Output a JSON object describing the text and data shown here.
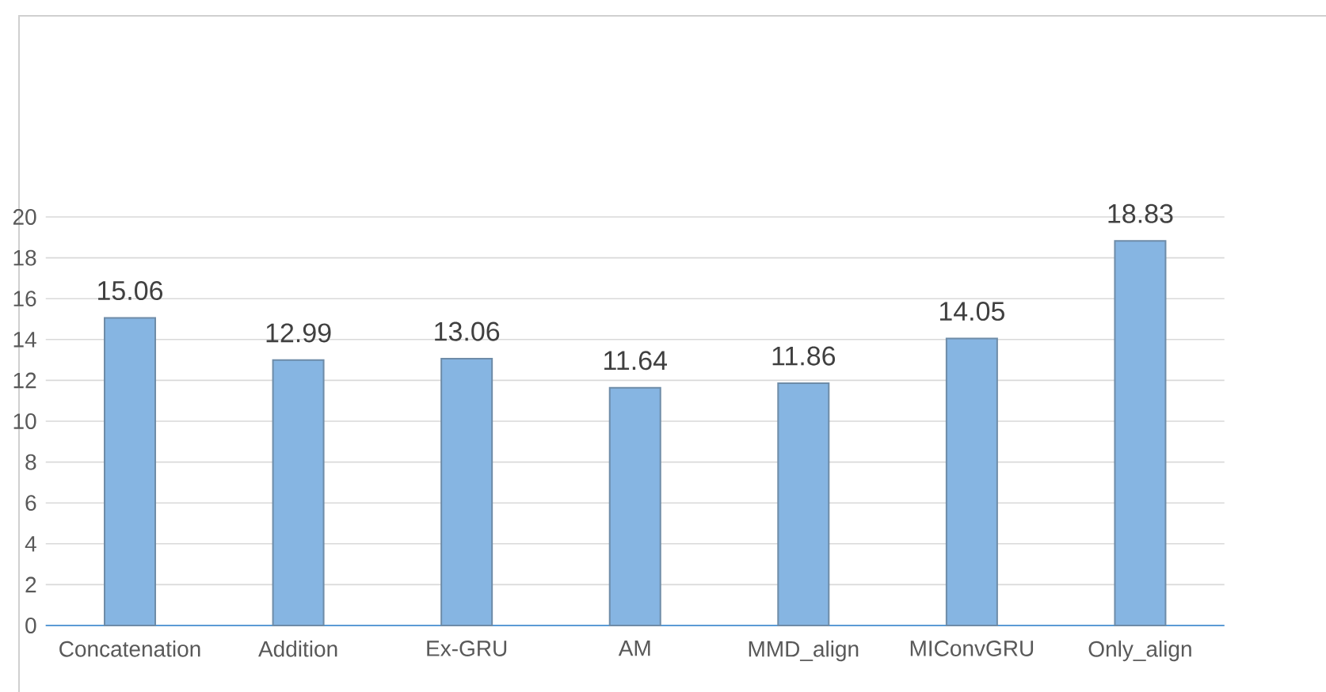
{
  "chart_data": {
    "type": "bar",
    "categories": [
      "Concatenation",
      "Addition",
      "Ex-GRU",
      "AM",
      "MMD_align",
      "MIConvGRU",
      "Only_align"
    ],
    "values": [
      15.06,
      12.99,
      13.06,
      11.64,
      11.86,
      14.05,
      18.83
    ],
    "color": "#86b5e2",
    "ylim": [
      0,
      20
    ],
    "yticks": [
      0,
      2,
      4,
      6,
      8,
      10,
      12,
      14,
      16,
      18,
      20
    ],
    "grid": "y",
    "data_labels": true
  }
}
